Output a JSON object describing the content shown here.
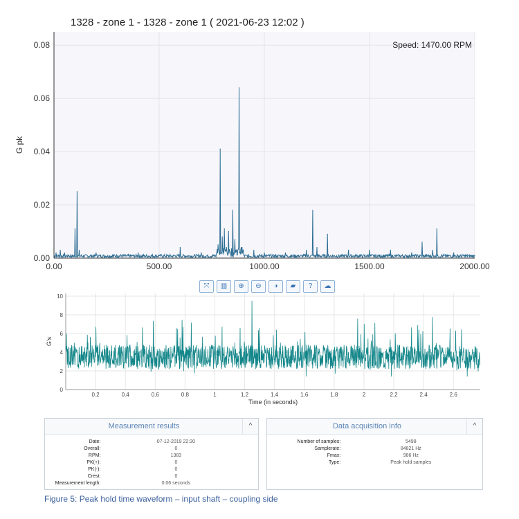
{
  "top_chart": {
    "title": "1328 - zone 1 - 1328 - zone 1 ( 2021-06-23 12:02 )",
    "speed_label": "Speed: 1470.00 RPM",
    "ylabel": "G pk",
    "y_ticks": [
      "0.00",
      "0.02",
      "0.04",
      "0.06",
      "0.08"
    ],
    "x_ticks": [
      "0.00",
      "500.00",
      "1000.00",
      "1500.00",
      "2000.00"
    ]
  },
  "toolbar": {
    "buttons": [
      {
        "name": "fullscreen-icon",
        "glyph": "⤧"
      },
      {
        "name": "spectrum-icon",
        "glyph": "▥"
      },
      {
        "name": "zoom-in-icon",
        "glyph": "⊕"
      },
      {
        "name": "zoom-out-icon",
        "glyph": "⊖"
      },
      {
        "name": "contrast-icon",
        "glyph": "◑"
      },
      {
        "name": "comment-icon",
        "glyph": "▰"
      },
      {
        "name": "help-icon",
        "glyph": "?"
      },
      {
        "name": "cloud-upload-icon",
        "glyph": "☁"
      }
    ]
  },
  "bottom_chart": {
    "ylabel": "G's",
    "xlabel": "Time (in seconds)",
    "y_ticks": [
      "0",
      "2",
      "4",
      "6",
      "8",
      "10"
    ],
    "x_ticks": [
      "0.2",
      "0.4",
      "0.6",
      "0.8",
      "1",
      "1.2",
      "1.4",
      "1.6",
      "1.8",
      "2",
      "2.2",
      "2.4",
      "2.6"
    ]
  },
  "measurement_panel": {
    "title": "Measurement results",
    "toggle": "^",
    "rows": [
      {
        "label": "Date:",
        "value": "07-12-2019 22:30"
      },
      {
        "label": "Overall:",
        "value": "0"
      },
      {
        "label": "RPM:",
        "value": "1383"
      },
      {
        "label": "PK(+):",
        "value": "0"
      },
      {
        "label": "PK(-):",
        "value": "0"
      },
      {
        "label": "Crest:",
        "value": "0"
      },
      {
        "label": "Measurement length:",
        "value": "0.06 seconds"
      }
    ]
  },
  "acquisition_panel": {
    "title": "Data acquisition info",
    "toggle": "^",
    "rows": [
      {
        "label": "Number of samples:",
        "value": "5498"
      },
      {
        "label": "Samplerate:",
        "value": "84821 Hz"
      },
      {
        "label": "Fmax:",
        "value": "986 Hz"
      },
      {
        "label": "Type:",
        "value": "Peak hold samples"
      }
    ]
  },
  "caption": "Figure 5: Peak hold time waveform – input shaft – coupling side",
  "colors": {
    "spectrum_line": "#2f6e94",
    "waveform_line": "#15878a",
    "plot_bg": "#f6f6fb",
    "grid": "#e4e4ec"
  },
  "chart_data": [
    {
      "type": "line",
      "title": "1328 - zone 1 - 1328 - zone 1 ( 2021-06-23 12:02 )",
      "xlabel": "",
      "ylabel": "G pk",
      "xlim": [
        0,
        2000
      ],
      "ylim": [
        0,
        0.085
      ],
      "grid": true,
      "annotations": [
        "Speed: 1470.00 RPM"
      ],
      "x": [
        10,
        30,
        50,
        70,
        100,
        110,
        120,
        200,
        300,
        400,
        500,
        600,
        700,
        780,
        790,
        800,
        810,
        820,
        830,
        850,
        860,
        880,
        890,
        900,
        950,
        1000,
        1100,
        1200,
        1230,
        1250,
        1300,
        1400,
        1500,
        1600,
        1700,
        1750,
        1800,
        1820,
        1900,
        2000
      ],
      "values": [
        0.002,
        0.003,
        0.002,
        0.001,
        0.011,
        0.025,
        0.003,
        0.002,
        0.001,
        0.002,
        0.001,
        0.004,
        0.002,
        0.005,
        0.041,
        0.008,
        0.011,
        0.004,
        0.01,
        0.018,
        0.007,
        0.064,
        0.004,
        0.003,
        0.003,
        0.002,
        0.002,
        0.003,
        0.018,
        0.004,
        0.009,
        0.003,
        0.003,
        0.003,
        0.002,
        0.006,
        0.003,
        0.011,
        0.002,
        0.001
      ]
    },
    {
      "type": "line",
      "title": "",
      "xlabel": "Time (in seconds)",
      "ylabel": "G's",
      "xlim": [
        0,
        2.78
      ],
      "ylim": [
        0,
        10.3
      ],
      "grid": true,
      "x": [
        0,
        0.1,
        0.2,
        0.3,
        0.4,
        0.5,
        0.6,
        0.7,
        0.8,
        0.9,
        1.0,
        1.1,
        1.2,
        1.25,
        1.3,
        1.4,
        1.5,
        1.6,
        1.7,
        1.8,
        1.9,
        2.0,
        2.1,
        2.2,
        2.3,
        2.4,
        2.5,
        2.6,
        2.7,
        2.78
      ],
      "values": [
        3.4,
        3.6,
        3.3,
        3.7,
        3.5,
        3.4,
        3.6,
        3.5,
        3.8,
        3.4,
        3.6,
        3.5,
        3.7,
        9.5,
        3.6,
        3.4,
        3.7,
        3.5,
        3.6,
        3.4,
        3.5,
        3.8,
        3.4,
        3.6,
        3.5,
        3.7,
        3.4,
        3.6,
        3.5,
        3.5
      ],
      "approx_range": [
        1.5,
        9.5
      ]
    }
  ]
}
